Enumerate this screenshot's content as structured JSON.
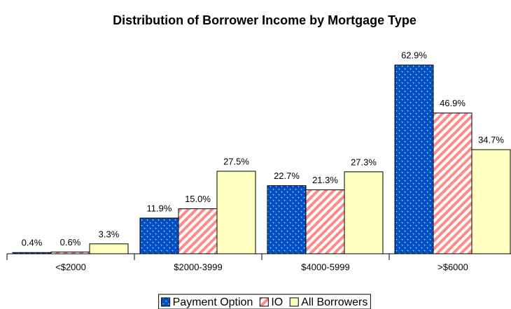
{
  "chart_data": {
    "type": "bar",
    "title": "Distribution of Borrower Income by Mortgage Type",
    "categories": [
      "<$2000",
      "$2000-3999",
      "$4000-5999",
      ">$6000"
    ],
    "series": [
      {
        "name": "Payment Option",
        "color": "#0050c8",
        "pattern": "dots",
        "values": [
          0.4,
          11.9,
          22.7,
          62.9
        ],
        "value_labels": [
          "0.4%",
          "11.9%",
          "22.7%",
          "62.9%"
        ]
      },
      {
        "name": "IO",
        "color": "#ff8a8a",
        "pattern": "stripes",
        "values": [
          0.6,
          15.0,
          21.3,
          46.9
        ],
        "value_labels": [
          "0.6%",
          "15.0%",
          "21.3%",
          "46.9%"
        ]
      },
      {
        "name": "All Borrowers",
        "color": "#ffffc0",
        "pattern": "none",
        "values": [
          3.3,
          27.5,
          27.3,
          34.7
        ],
        "value_labels": [
          "3.3%",
          "27.5%",
          "27.3%",
          "34.7%"
        ]
      }
    ],
    "legend": "bottom"
  }
}
